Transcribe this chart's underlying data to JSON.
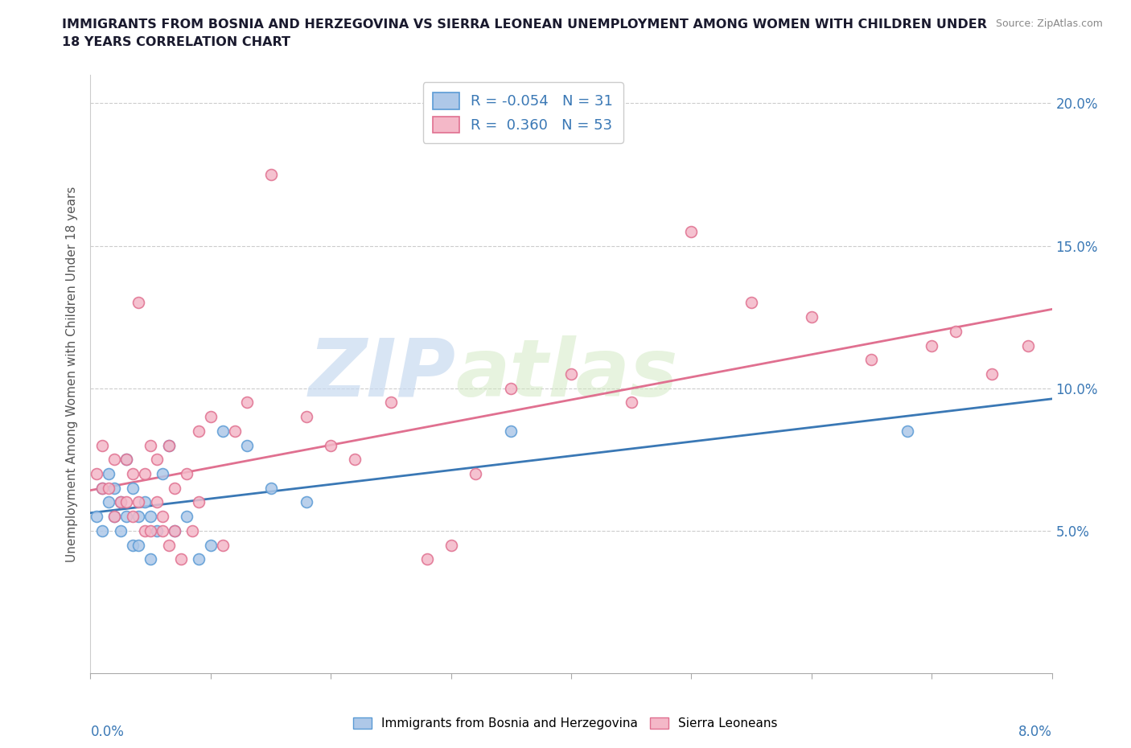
{
  "title_line1": "IMMIGRANTS FROM BOSNIA AND HERZEGOVINA VS SIERRA LEONEAN UNEMPLOYMENT AMONG WOMEN WITH CHILDREN UNDER",
  "title_line2": "18 YEARS CORRELATION CHART",
  "source_text": "Source: ZipAtlas.com",
  "ylabel": "Unemployment Among Women with Children Under 18 years",
  "xlim": [
    0.0,
    8.0
  ],
  "ylim": [
    0.0,
    21.0
  ],
  "yticks": [
    0.0,
    5.0,
    10.0,
    15.0,
    20.0
  ],
  "ytick_labels": [
    "",
    "5.0%",
    "10.0%",
    "15.0%",
    "20.0%"
  ],
  "xticks": [
    0.0,
    1.0,
    2.0,
    3.0,
    4.0,
    5.0,
    6.0,
    7.0,
    8.0
  ],
  "color_blue_fill": "#aec8e8",
  "color_blue_edge": "#5b9bd5",
  "color_pink_fill": "#f4b8c8",
  "color_pink_edge": "#e07090",
  "color_blue_line": "#3a78b5",
  "color_pink_line": "#e07090",
  "watermark_zip": "ZIP",
  "watermark_atlas": "atlas",
  "legend_label_1": "Immigrants from Bosnia and Herzegovina",
  "legend_label_2": "Sierra Leoneans",
  "bosnia_x": [
    0.05,
    0.1,
    0.1,
    0.15,
    0.15,
    0.2,
    0.2,
    0.25,
    0.25,
    0.3,
    0.3,
    0.35,
    0.35,
    0.4,
    0.4,
    0.45,
    0.5,
    0.5,
    0.55,
    0.6,
    0.65,
    0.7,
    0.8,
    0.9,
    1.0,
    1.1,
    1.3,
    1.5,
    1.8,
    3.5,
    6.8
  ],
  "bosnia_y": [
    5.5,
    6.5,
    5.0,
    7.0,
    6.0,
    6.5,
    5.5,
    6.0,
    5.0,
    7.5,
    5.5,
    6.5,
    4.5,
    5.5,
    4.5,
    6.0,
    5.5,
    4.0,
    5.0,
    7.0,
    8.0,
    5.0,
    5.5,
    4.0,
    4.5,
    8.5,
    8.0,
    6.5,
    6.0,
    8.5,
    8.5
  ],
  "sierra_x": [
    0.05,
    0.1,
    0.1,
    0.15,
    0.2,
    0.2,
    0.25,
    0.3,
    0.3,
    0.35,
    0.35,
    0.4,
    0.4,
    0.45,
    0.45,
    0.5,
    0.5,
    0.55,
    0.55,
    0.6,
    0.6,
    0.65,
    0.65,
    0.7,
    0.7,
    0.75,
    0.8,
    0.85,
    0.9,
    0.9,
    1.0,
    1.1,
    1.2,
    1.3,
    1.5,
    1.8,
    2.0,
    2.2,
    2.5,
    2.8,
    3.0,
    3.2,
    3.5,
    4.0,
    4.5,
    5.0,
    5.5,
    6.0,
    6.5,
    7.0,
    7.2,
    7.5,
    7.8
  ],
  "sierra_y": [
    7.0,
    8.0,
    6.5,
    6.5,
    7.5,
    5.5,
    6.0,
    7.5,
    6.0,
    7.0,
    5.5,
    13.0,
    6.0,
    5.0,
    7.0,
    8.0,
    5.0,
    7.5,
    6.0,
    5.5,
    5.0,
    4.5,
    8.0,
    5.0,
    6.5,
    4.0,
    7.0,
    5.0,
    8.5,
    6.0,
    9.0,
    4.5,
    8.5,
    9.5,
    17.5,
    9.0,
    8.0,
    7.5,
    9.5,
    4.0,
    4.5,
    7.0,
    10.0,
    10.5,
    9.5,
    15.5,
    13.0,
    12.5,
    11.0,
    11.5,
    12.0,
    10.5,
    11.5
  ]
}
